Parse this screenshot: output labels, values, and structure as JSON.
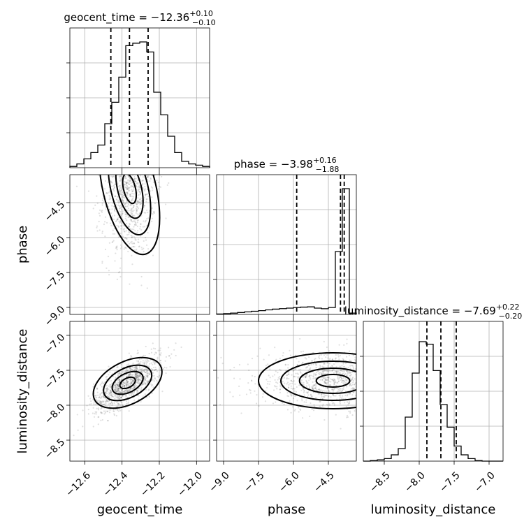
{
  "figure": {
    "type": "corner-plot"
  },
  "chart_data": {
    "type": "corner",
    "parameters": [
      "geocent_time",
      "phase",
      "luminosity_distance"
    ],
    "titles": [
      {
        "param": "geocent_time",
        "prefix": "geocent_time = ",
        "median": "−12.36",
        "plus": "+0.10",
        "minus": "−0.10"
      },
      {
        "param": "phase",
        "prefix": "phase = ",
        "median": "−3.98",
        "plus": "+0.16",
        "minus": "−1.88"
      },
      {
        "param": "luminosity_distance",
        "prefix": "luminosity_distance = ",
        "median": "−7.69",
        "plus": "+0.22",
        "minus": "−0.20"
      }
    ],
    "axis_labels": {
      "geocent_time": "geocent_time",
      "phase": "phase",
      "luminosity_distance": "luminosity_distance"
    },
    "ranges": {
      "geocent_time": [
        -12.68,
        -11.93
      ],
      "phase": [
        -9.3,
        -3.3
      ],
      "luminosity_distance": [
        -8.8,
        -6.8
      ]
    },
    "ticks": {
      "geocent_time": {
        "values": [
          -12.6,
          -12.4,
          -12.2,
          -12.0
        ],
        "labels": [
          "−12.6",
          "−12.4",
          "−12.2",
          "−12.0"
        ]
      },
      "phase": {
        "values": [
          -9.0,
          -7.5,
          -6.0,
          -4.5
        ],
        "labels": [
          "−9.0",
          "−7.5",
          "−6.0",
          "−4.5"
        ]
      },
      "luminosity_distance": {
        "values": [
          -8.5,
          -8.0,
          -7.5,
          -7.0
        ],
        "labels": [
          "−8.5",
          "−8.0",
          "−7.5",
          "−7.0"
        ]
      }
    },
    "quantiles": {
      "geocent_time": [
        -12.46,
        -12.36,
        -12.26
      ],
      "phase": [
        -5.86,
        -3.98,
        -3.82
      ],
      "luminosity_distance": [
        -7.89,
        -7.69,
        -7.47
      ]
    },
    "histograms": {
      "geocent_time": [
        0.01,
        0.03,
        0.07,
        0.12,
        0.18,
        0.35,
        0.52,
        0.72,
        0.97,
        0.99,
        1.0,
        0.92,
        0.6,
        0.42,
        0.25,
        0.12,
        0.05,
        0.03,
        0.02,
        0.01
      ],
      "phase": [
        0.003,
        0.006,
        0.01,
        0.015,
        0.02,
        0.025,
        0.03,
        0.036,
        0.042,
        0.046,
        0.05,
        0.055,
        0.058,
        0.06,
        0.05,
        0.045,
        0.055,
        0.5,
        1.0,
        0.01
      ],
      "luminosity_distance": [
        0.0,
        0.005,
        0.01,
        0.02,
        0.05,
        0.1,
        0.35,
        0.7,
        0.95,
        0.93,
        0.72,
        0.45,
        0.27,
        0.12,
        0.05,
        0.02,
        0.005,
        0.0,
        0.0,
        0.0
      ]
    },
    "bivariate": [
      {
        "x": "geocent_time",
        "y": "phase",
        "center": [
          -12.36,
          -3.9
        ],
        "spread": [
          0.07,
          1.5
        ],
        "corr": 0.1
      },
      {
        "x": "geocent_time",
        "y": "luminosity_distance",
        "center": [
          -12.37,
          -7.68
        ],
        "spread": [
          0.09,
          0.2
        ],
        "corr": 0.7
      },
      {
        "x": "phase",
        "y": "luminosity_distance",
        "center": [
          -4.3,
          -7.65
        ],
        "spread": [
          1.6,
          0.2
        ],
        "corr": 0.0
      }
    ],
    "grid": true
  }
}
